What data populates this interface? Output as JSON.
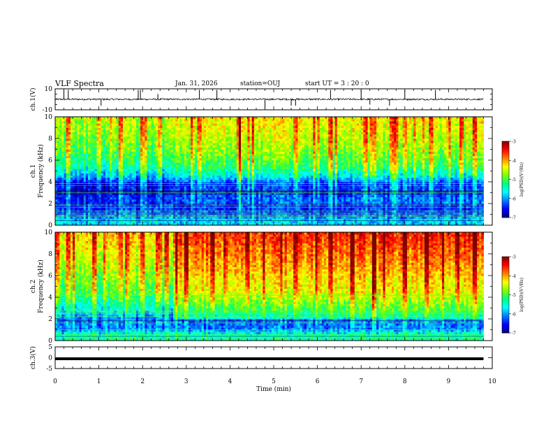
{
  "header": {
    "title": "VLF Spectra",
    "date": "Jan. 31, 2026",
    "station": "station=OUJ",
    "start_ut": "start UT =  3 : 20 : 0"
  },
  "chart_data": [
    {
      "type": "line",
      "panel": "ch1-waveform",
      "ylabel": "ch.1(V)",
      "ylim": [
        -10,
        10
      ],
      "yticks": [
        "10",
        "-10"
      ],
      "xlim": [
        0,
        10
      ],
      "baseline": 0,
      "noise_amplitude": 0.8,
      "data_end_min": 9.8,
      "spikes": [
        {
          "t": 0.2,
          "v": 9
        },
        {
          "t": 0.3,
          "v": 9
        },
        {
          "t": 1.05,
          "v": -6
        },
        {
          "t": 1.9,
          "v": 9
        },
        {
          "t": 1.95,
          "v": 9
        },
        {
          "t": 2.35,
          "v": 5
        },
        {
          "t": 3.3,
          "v": 9
        },
        {
          "t": 3.7,
          "v": 9
        },
        {
          "t": 4.8,
          "v": -9
        },
        {
          "t": 5.4,
          "v": -6
        },
        {
          "t": 5.5,
          "v": -6
        },
        {
          "t": 6.3,
          "v": 9
        },
        {
          "t": 7.0,
          "v": 9
        },
        {
          "t": 7.2,
          "v": -5
        },
        {
          "t": 7.65,
          "v": -6
        },
        {
          "t": 8.0,
          "v": 9
        },
        {
          "t": 8.7,
          "v": 9
        }
      ]
    },
    {
      "type": "heatmap",
      "panel": "ch1-spectrogram",
      "ylabel": "ch.1\nFrequency (kHz)",
      "ylabel_lines": [
        "ch.1",
        "Frequency (kHz)"
      ],
      "ylim": [
        0,
        10
      ],
      "yticks": [
        "0",
        "2",
        "4",
        "6",
        "8",
        "10"
      ],
      "xlim": [
        0,
        10
      ],
      "data_end_min": 9.8,
      "colorbar": {
        "label": "log(PSD)(V²/Hz)",
        "range": [
          -7,
          -3
        ],
        "ticks": [
          "-3",
          "-4",
          "-5",
          "-6",
          "-7"
        ]
      },
      "band_profile": [
        {
          "f_khz": 0.5,
          "log_psd": -5.8
        },
        {
          "f_khz": 1.0,
          "log_psd": -6.3
        },
        {
          "f_khz": 2.0,
          "log_psd": -6.5
        },
        {
          "f_khz": 3.0,
          "log_psd": -6.6
        },
        {
          "f_khz": 3.8,
          "log_psd": -6.7
        },
        {
          "f_khz": 4.5,
          "log_psd": -6.0
        },
        {
          "f_khz": 5.5,
          "log_psd": -5.4
        },
        {
          "f_khz": 7.0,
          "log_psd": -5.0
        },
        {
          "f_khz": 9.0,
          "log_psd": -4.7
        },
        {
          "f_khz": 10.0,
          "log_psd": -4.6
        }
      ],
      "step_change_min": 2.7,
      "step_delta_above_2khz": 0.3,
      "hot_bursts_min": [
        0.3,
        1.0,
        1.5,
        2.0,
        2.4,
        3.3,
        4.2,
        5.5,
        6.3,
        7.1,
        7.7,
        8.0,
        8.6,
        9.3,
        9.6
      ]
    },
    {
      "type": "heatmap",
      "panel": "ch2-spectrogram",
      "ylabel": "ch.2\nFrequency (kHz)",
      "ylabel_lines": [
        "ch.2",
        "Frequency (kHz)"
      ],
      "ylim": [
        0,
        10
      ],
      "yticks": [
        "0",
        "2",
        "4",
        "6",
        "8",
        "10"
      ],
      "xlim": [
        0,
        10
      ],
      "data_end_min": 9.8,
      "colorbar": {
        "label": "log(PSD)(V²/Hz)",
        "range": [
          -7,
          -3
        ],
        "ticks": [
          "-3",
          "-4",
          "-5",
          "-6",
          "-7"
        ]
      },
      "band_profile": [
        {
          "f_khz": 0.5,
          "log_psd": -5.4
        },
        {
          "f_khz": 1.0,
          "log_psd": -6.1
        },
        {
          "f_khz": 2.0,
          "log_psd": -6.2
        },
        {
          "f_khz": 3.0,
          "log_psd": -5.6
        },
        {
          "f_khz": 3.8,
          "log_psd": -5.3
        },
        {
          "f_khz": 4.5,
          "log_psd": -5.0
        },
        {
          "f_khz": 5.5,
          "log_psd": -4.9
        },
        {
          "f_khz": 7.0,
          "log_psd": -4.6
        },
        {
          "f_khz": 9.0,
          "log_psd": -4.3
        },
        {
          "f_khz": 10.0,
          "log_psd": -4.2
        }
      ],
      "step_change_min": 2.7,
      "step_delta_above_2khz": 0.6,
      "hot_bursts_min": [
        0.3,
        0.9,
        1.5,
        2.0,
        2.4,
        3.0,
        3.6,
        4.4,
        5.5,
        6.3,
        6.8,
        7.3,
        8.0,
        8.5,
        9.2,
        9.6
      ]
    },
    {
      "type": "line",
      "panel": "ch3-waveform",
      "ylabel": "ch.3(V)",
      "ylim": [
        -5,
        5
      ],
      "yticks": [
        "5",
        "0",
        "-5"
      ],
      "xlim": [
        0,
        10
      ],
      "baseline": -0.5,
      "data_end_min": 9.8,
      "xlabel": "Time (min)",
      "xticks": [
        "0",
        "1",
        "2",
        "3",
        "4",
        "5",
        "6",
        "7",
        "8",
        "9",
        "10"
      ]
    }
  ],
  "colors": {
    "background": "#ffffff",
    "axis": "#000000",
    "trace": "#000000",
    "colormap": [
      "#00007f",
      "#0000ff",
      "#007fff",
      "#00ffff",
      "#00ff7f",
      "#7fff00",
      "#ffff00",
      "#ff7f00",
      "#ff0000",
      "#7f0000"
    ]
  }
}
